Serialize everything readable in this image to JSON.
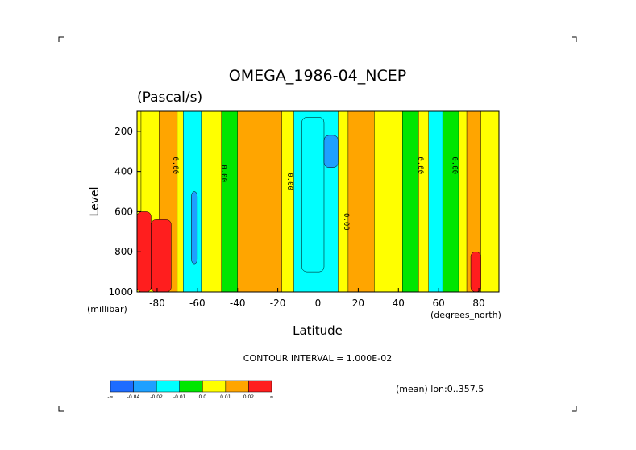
{
  "chart_data": {
    "type": "heatmap",
    "title": "OMEGA_1986-04_NCEP",
    "subtitle": "(Pascal/s)",
    "xlabel": "Latitude",
    "x_unit": "(degrees_north)",
    "ylabel": "Level",
    "y_unit": "(millibar)",
    "xlim": [
      -90,
      90
    ],
    "ylim": [
      1000,
      100
    ],
    "x_ticks": [
      -80,
      -60,
      -40,
      -20,
      0,
      20,
      40,
      60,
      80
    ],
    "x_tick_labels": [
      "-80",
      "-60",
      "-40",
      "-20",
      "0",
      "20",
      "40",
      "60",
      "80"
    ],
    "y_ticks": [
      200,
      400,
      600,
      800,
      1000
    ],
    "y_tick_labels": [
      "200",
      "400",
      "600",
      "800",
      "1000"
    ],
    "contour_interval_text": "CONTOUR INTERVAL = 1.000E-02",
    "annotation": "(mean) lon:0..357.5",
    "contour_labels": [
      {
        "text": "0.00",
        "lat": -72,
        "level": 370
      },
      {
        "text": "0.00",
        "lat": -48,
        "level": 410
      },
      {
        "text": "0.00",
        "lat": -15,
        "level": 450
      },
      {
        "text": "0.00",
        "lat": 13,
        "level": 650
      },
      {
        "text": "0.00",
        "lat": 50,
        "level": 370
      },
      {
        "text": "0.00",
        "lat": 67,
        "level": 370
      }
    ],
    "colorbar": {
      "colors": [
        "#1e6cff",
        "#1ea0ff",
        "#00ffff",
        "#00e600",
        "#ffff00",
        "#ffa500",
        "#ff1e1e"
      ],
      "labels": [
        "-∞",
        "-0.04",
        "-0.02",
        "-0.01",
        "0.0",
        "0.01",
        "0.02",
        "∞"
      ]
    },
    "field_bands": [
      {
        "lat": [
          -90,
          -88
        ],
        "value": 0.0
      },
      {
        "lat": [
          -88,
          -79
        ],
        "value": 0.005
      },
      {
        "lat": [
          -79,
          -70
        ],
        "value": 0.012
      },
      {
        "lat": [
          -70,
          -67
        ],
        "value": 0.0
      },
      {
        "lat": [
          -67,
          -58
        ],
        "value": -0.015
      },
      {
        "lat": [
          -58,
          -48
        ],
        "value": 0.0
      },
      {
        "lat": [
          -48,
          -40
        ],
        "value": -0.005
      },
      {
        "lat": [
          -40,
          -18
        ],
        "value": 0.012
      },
      {
        "lat": [
          -18,
          -12
        ],
        "value": 0.0
      },
      {
        "lat": [
          -12,
          10
        ],
        "value": -0.015
      },
      {
        "lat": [
          10,
          15
        ],
        "value": 0.0
      },
      {
        "lat": [
          15,
          28
        ],
        "value": 0.012
      },
      {
        "lat": [
          28,
          42
        ],
        "value": 0.0
      },
      {
        "lat": [
          42,
          50
        ],
        "value": -0.005
      },
      {
        "lat": [
          50,
          55
        ],
        "value": 0.0
      },
      {
        "lat": [
          55,
          62
        ],
        "value": -0.015
      },
      {
        "lat": [
          62,
          70
        ],
        "value": -0.005
      },
      {
        "lat": [
          70,
          74
        ],
        "value": 0.0
      },
      {
        "lat": [
          74,
          81
        ],
        "value": 0.012
      },
      {
        "lat": [
          81,
          90
        ],
        "value": 0.0
      }
    ],
    "field_cells": [
      {
        "lat": [
          -90,
          -83
        ],
        "level": [
          600,
          1000
        ],
        "value": 0.04
      },
      {
        "lat": [
          -83,
          -73
        ],
        "level": [
          640,
          1000
        ],
        "value": 0.04
      },
      {
        "lat": [
          -8,
          3
        ],
        "level": [
          130,
          900
        ],
        "value": -0.015
      },
      {
        "lat": [
          3,
          10
        ],
        "level": [
          220,
          380
        ],
        "value": -0.03
      },
      {
        "lat": [
          -63,
          -60
        ],
        "level": [
          500,
          860
        ],
        "value": -0.03
      },
      {
        "lat": [
          76,
          81
        ],
        "level": [
          800,
          1000
        ],
        "value": 0.04
      }
    ]
  }
}
